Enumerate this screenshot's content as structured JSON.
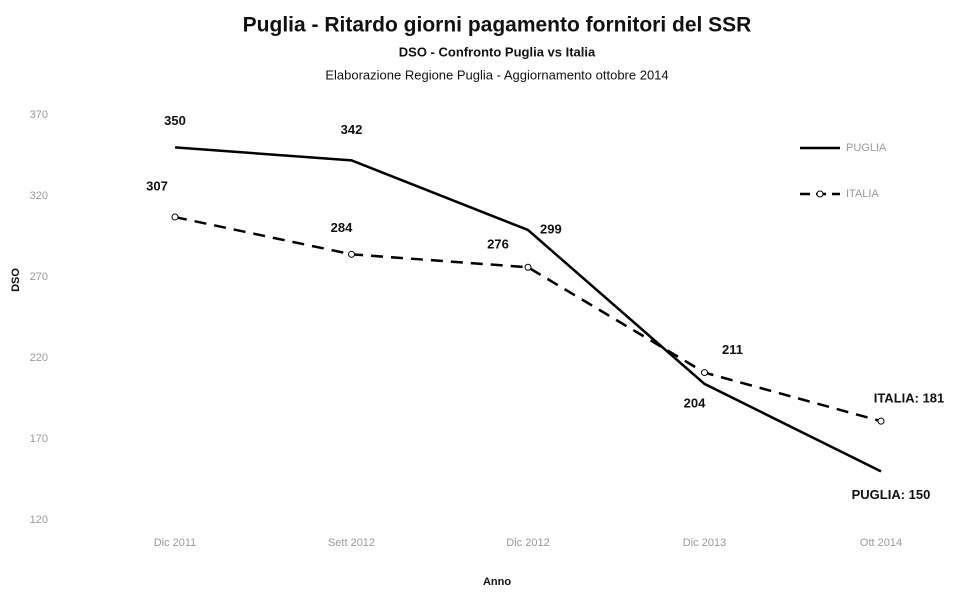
{
  "chart_data": {
    "type": "line",
    "title": "Puglia - Ritardo giorni pagamento fornitori del SSR",
    "subtitle": "DSO - Confronto Puglia vs Italia",
    "note": "Elaborazione Regione Puglia - Aggiornamento ottobre 2014",
    "x_label": "Anno",
    "y_label": "DSO",
    "categories": [
      "Dic 2011",
      "Sett 2012",
      "Dic 2012",
      "Dic 2013",
      "Ott 2014"
    ],
    "series": [
      {
        "name": "PUGLIA",
        "color": "#000000",
        "dash": false,
        "marker": false,
        "values": [
          350,
          342,
          299,
          204,
          150
        ],
        "value_labels": [
          "350",
          "342",
          "299",
          "204",
          "PUGLIA: 150"
        ]
      },
      {
        "name": "ITALIA",
        "color": "#000000",
        "dash": true,
        "marker": true,
        "values": [
          307,
          284,
          276,
          211,
          181
        ],
        "value_labels": [
          "307",
          "284",
          "276",
          "211",
          "ITALIA: 181"
        ]
      }
    ],
    "ylim": [
      120,
      370
    ],
    "yticks": [
      120,
      170,
      220,
      270,
      320,
      370
    ],
    "grid": false,
    "legend": "upper right"
  }
}
